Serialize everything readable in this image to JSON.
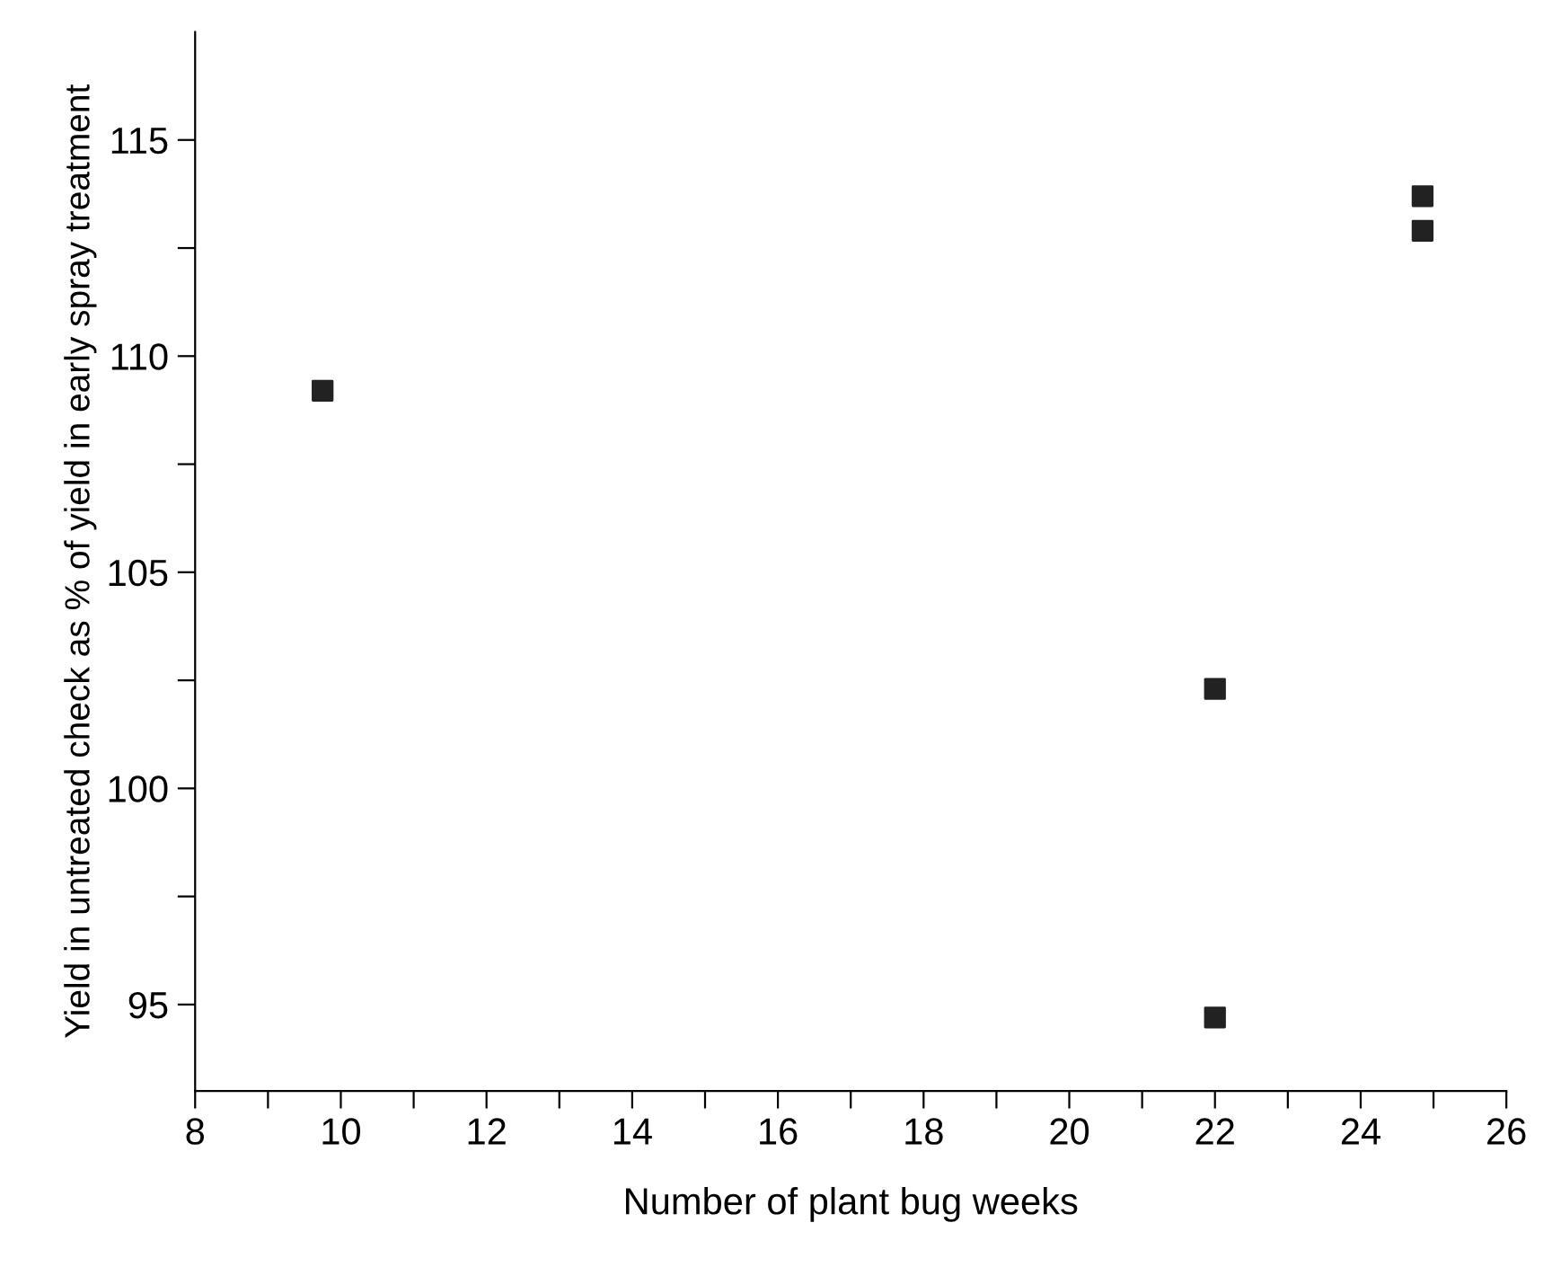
{
  "chart_data": {
    "type": "scatter",
    "xlabel": "Number of plant bug weeks",
    "ylabel": "Yield in untreated check as % of yield in early spray treatment",
    "x": [
      9.75,
      22,
      22,
      24.85,
      24.85
    ],
    "values": [
      109.2,
      102.3,
      94.7,
      113.7,
      112.9
    ],
    "color": "#222222",
    "marker": "square",
    "xlim": [
      8,
      26
    ],
    "ylim": [
      93,
      117.5
    ],
    "xticks": [
      8,
      {
        "value": 9,
        "label": null
      },
      10,
      {
        "value": 11,
        "label": null
      },
      12,
      {
        "value": 13,
        "label": null
      },
      14,
      {
        "value": 15,
        "label": null
      },
      16,
      {
        "value": 17,
        "label": null
      },
      18,
      {
        "value": 19,
        "label": null
      },
      20,
      {
        "value": 21,
        "label": null
      },
      22,
      {
        "value": 23,
        "label": null
      },
      24,
      {
        "value": 25,
        "label": null
      },
      26
    ],
    "yticks": [
      95,
      {
        "value": 97.5,
        "label": null
      },
      100,
      {
        "value": 102.5,
        "label": null
      },
      105,
      {
        "value": 107.5,
        "label": null
      },
      110,
      {
        "value": 112.5,
        "label": null
      },
      115
    ],
    "grid": false,
    "legend": false
  }
}
